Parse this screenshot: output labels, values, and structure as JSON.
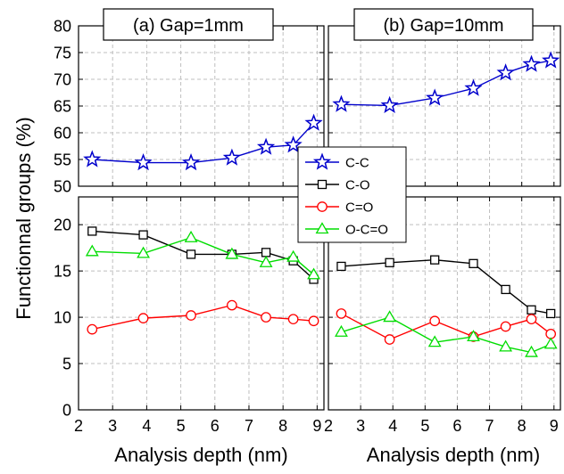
{
  "chart_data": {
    "type": "line",
    "ylabel": "Functionnal groups (%)",
    "legend": {
      "placement": "center",
      "entries": [
        "C-C",
        "C-O",
        "C=O",
        "O-C=O"
      ]
    },
    "colors": {
      "C-C": "#0000cc",
      "C-O": "#000000",
      "C=O": "#ff0000",
      "O-C=O": "#00dd00"
    },
    "markers": {
      "C-C": "star",
      "C-O": "square",
      "C=O": "circle",
      "O-C=O": "triangle"
    },
    "grid": true,
    "panels": [
      {
        "title": "(a) Gap=1mm",
        "xlabel": "Analysis depth (nm)",
        "x_ticks": [
          "2",
          "3",
          "4",
          "5",
          "6",
          "7",
          "8",
          "9"
        ],
        "xlim": [
          2,
          9.2
        ],
        "upper": {
          "ylim": [
            50,
            80
          ],
          "y_ticks": [
            "50",
            "55",
            "60",
            "65",
            "70",
            "75",
            "80"
          ],
          "series": [
            {
              "name": "C-C",
              "x": [
                2.4,
                3.9,
                5.3,
                6.5,
                7.5,
                8.3,
                8.9
              ],
              "values": [
                55.0,
                54.4,
                54.4,
                55.3,
                57.3,
                57.7,
                61.8
              ]
            }
          ]
        },
        "lower": {
          "ylim": [
            0,
            23
          ],
          "y_ticks": [
            "0",
            "5",
            "10",
            "15",
            "20"
          ],
          "series": [
            {
              "name": "C-O",
              "x": [
                2.4,
                3.9,
                5.3,
                6.5,
                7.5,
                8.3,
                8.9
              ],
              "values": [
                19.3,
                18.9,
                16.8,
                16.8,
                17.0,
                16.1,
                14.1
              ]
            },
            {
              "name": "C=O",
              "x": [
                2.4,
                3.9,
                5.3,
                6.5,
                7.5,
                8.3,
                8.9
              ],
              "values": [
                8.7,
                9.9,
                10.2,
                11.3,
                10.0,
                9.8,
                9.6
              ]
            },
            {
              "name": "O-C=O",
              "x": [
                2.4,
                3.9,
                5.3,
                6.5,
                7.5,
                8.3,
                8.9
              ],
              "values": [
                17.1,
                16.9,
                18.6,
                16.8,
                15.9,
                16.5,
                14.6
              ]
            }
          ]
        }
      },
      {
        "title": "(b) Gap=10mm",
        "xlabel": "Analysis depth (nm)",
        "x_ticks": [
          "2",
          "3",
          "4",
          "5",
          "6",
          "7",
          "8",
          "9"
        ],
        "xlim": [
          2,
          9.2
        ],
        "upper": {
          "ylim": [
            50,
            80
          ],
          "y_ticks": [],
          "series": [
            {
              "name": "C-C",
              "x": [
                2.4,
                3.9,
                5.3,
                6.5,
                7.5,
                8.3,
                8.9
              ],
              "values": [
                65.3,
                65.1,
                66.5,
                68.3,
                71.2,
                72.8,
                73.5
              ]
            }
          ]
        },
        "lower": {
          "ylim": [
            0,
            23
          ],
          "y_ticks": [],
          "series": [
            {
              "name": "C-O",
              "x": [
                2.4,
                3.9,
                5.3,
                6.5,
                7.5,
                8.3,
                8.9
              ],
              "values": [
                15.5,
                15.9,
                16.2,
                15.8,
                13.0,
                10.8,
                10.4
              ]
            },
            {
              "name": "C=O",
              "x": [
                2.4,
                3.9,
                5.3,
                6.5,
                7.5,
                8.3,
                8.9
              ],
              "values": [
                10.4,
                7.6,
                9.6,
                7.9,
                9.0,
                9.8,
                8.2
              ]
            },
            {
              "name": "O-C=O",
              "x": [
                2.4,
                3.9,
                5.3,
                6.5,
                7.5,
                8.3,
                8.9
              ],
              "values": [
                8.4,
                10.0,
                7.3,
                7.9,
                6.8,
                6.2,
                7.1
              ]
            }
          ]
        }
      }
    ]
  }
}
